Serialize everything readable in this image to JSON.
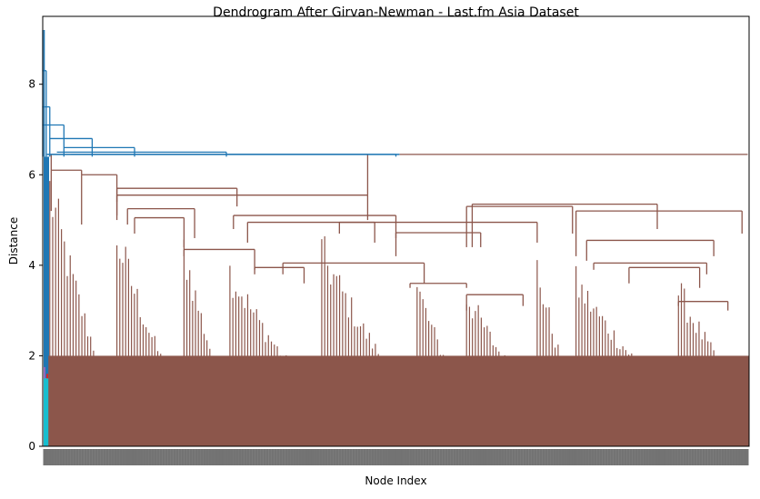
{
  "chart_data": {
    "type": "dendrogram",
    "title": "Dendrogram After Girvan-Newman - Last.fm Asia Dataset",
    "xlabel": "Node Index",
    "ylabel": "Distance",
    "ylim": [
      0,
      9.5
    ],
    "yticks": [
      0,
      2,
      4,
      6,
      8
    ],
    "grid": false,
    "legend": "none",
    "xticklabels_note": "dense overlapping node-index labels",
    "colors": {
      "above_threshold": "#1f77b4",
      "cluster_main": "#8c564b",
      "cluster_small_1": "#17becf",
      "cluster_small_2": "#9467bd",
      "cluster_small_3": "#d62728"
    },
    "top_merges": [
      {
        "from": 0.0,
        "to": 0.0,
        "height": 9.2
      },
      {
        "from": 0.0,
        "to": 0.5,
        "height": 8.3
      },
      {
        "from": 0.0,
        "to": 1.0,
        "height": 7.5
      },
      {
        "from": 0.0,
        "to": 3.0,
        "height": 7.1
      },
      {
        "from": 1.0,
        "to": 7.0,
        "height": 6.8
      },
      {
        "from": 3.0,
        "to": 13.0,
        "height": 6.6
      },
      {
        "from": 2.0,
        "to": 26.0,
        "height": 6.5
      },
      {
        "from": 4.0,
        "to": 50.0,
        "height": 6.45
      }
    ],
    "main_cluster_top": {
      "height": 6.45
    },
    "major_cluster_heights": [
      6.0,
      5.7,
      5.5,
      5.2,
      5.05,
      4.95,
      4.7,
      4.55,
      4.35,
      3.95,
      3.6
    ]
  }
}
